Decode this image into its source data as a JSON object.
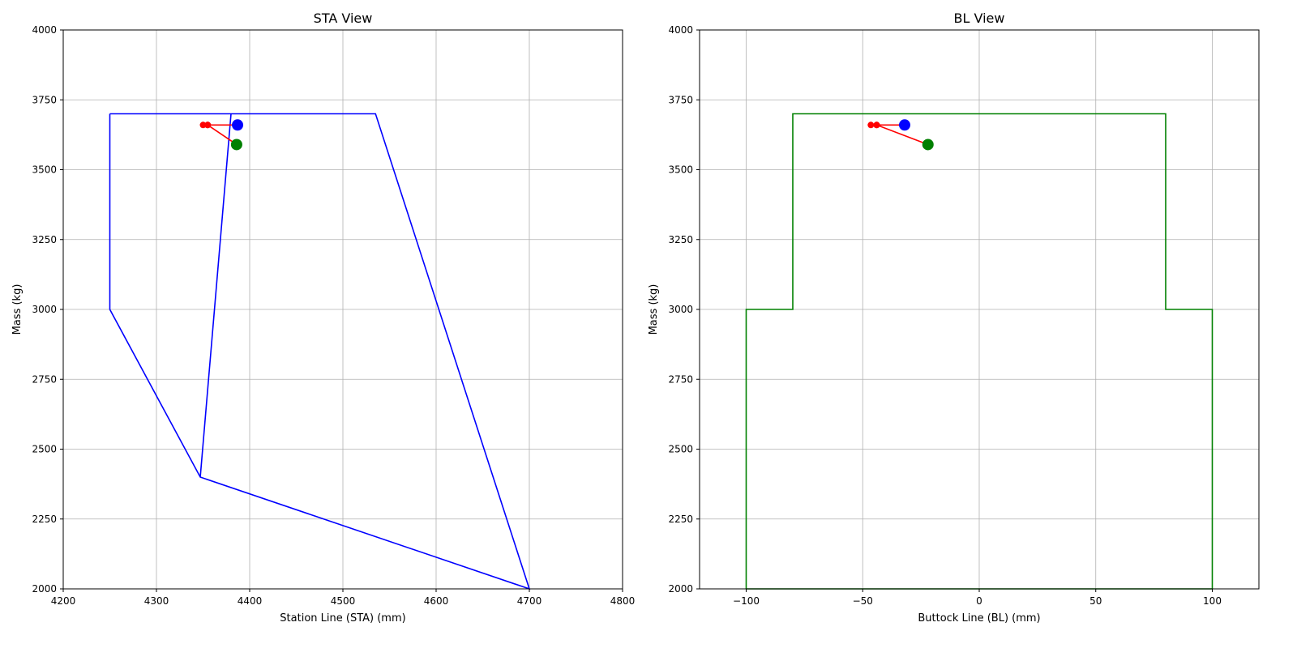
{
  "chart_data": [
    {
      "type": "line",
      "title": "STA View",
      "xlabel": "Station Line (STA) (mm)",
      "ylabel": "Mass (kg)",
      "xlim": [
        4200,
        4800
      ],
      "ylim": [
        2000,
        4000
      ],
      "xticks": [
        4200,
        4300,
        4400,
        4500,
        4600,
        4700,
        4800
      ],
      "yticks": [
        2000,
        2250,
        2500,
        2750,
        3000,
        3250,
        3500,
        3750,
        4000
      ],
      "grid": true,
      "envelope": {
        "color": "#0000ff",
        "x": [
          4250,
          4250,
          4347,
          4700,
          4535,
          4250,
          4380,
          4347
        ],
        "y": [
          3700,
          3000,
          2400,
          2000,
          3700,
          3700,
          3700,
          2400
        ]
      },
      "cg_path": {
        "color": "#ff0000",
        "points": [
          [
            4387,
            3660
          ],
          [
            4355,
            3660
          ],
          [
            4350,
            3660
          ],
          [
            4355,
            3660
          ],
          [
            4386,
            3590
          ]
        ]
      },
      "markers": [
        {
          "x": 4387,
          "y": 3660,
          "color": "#0000ff"
        },
        {
          "x": 4386,
          "y": 3590,
          "color": "#008000"
        }
      ]
    },
    {
      "type": "line",
      "title": "BL View",
      "xlabel": "Buttock Line (BL) (mm)",
      "ylabel": "Mass (kg)",
      "xlim": [
        -120,
        120
      ],
      "ylim": [
        2000,
        4000
      ],
      "xticks": [
        -100,
        -50,
        0,
        50,
        100
      ],
      "xtick_labels": [
        "−100",
        "−50",
        "0",
        "50",
        "100"
      ],
      "yticks": [
        2000,
        2250,
        2500,
        2750,
        3000,
        3250,
        3500,
        3750,
        4000
      ],
      "grid": true,
      "envelope": {
        "color": "#008000",
        "x": [
          -100,
          -100,
          -80,
          -80,
          80,
          80,
          100,
          100,
          -100
        ],
        "y": [
          2000,
          3000,
          3000,
          3700,
          3700,
          3000,
          3000,
          2000,
          2000
        ]
      },
      "cg_path": {
        "color": "#ff0000",
        "points": [
          [
            -32,
            3660
          ],
          [
            -44,
            3660
          ],
          [
            -46.5,
            3660
          ],
          [
            -44,
            3660
          ],
          [
            -22,
            3590
          ]
        ]
      },
      "markers": [
        {
          "x": -32,
          "y": 3660,
          "color": "#0000ff"
        },
        {
          "x": -22,
          "y": 3590,
          "color": "#008000"
        }
      ]
    }
  ]
}
